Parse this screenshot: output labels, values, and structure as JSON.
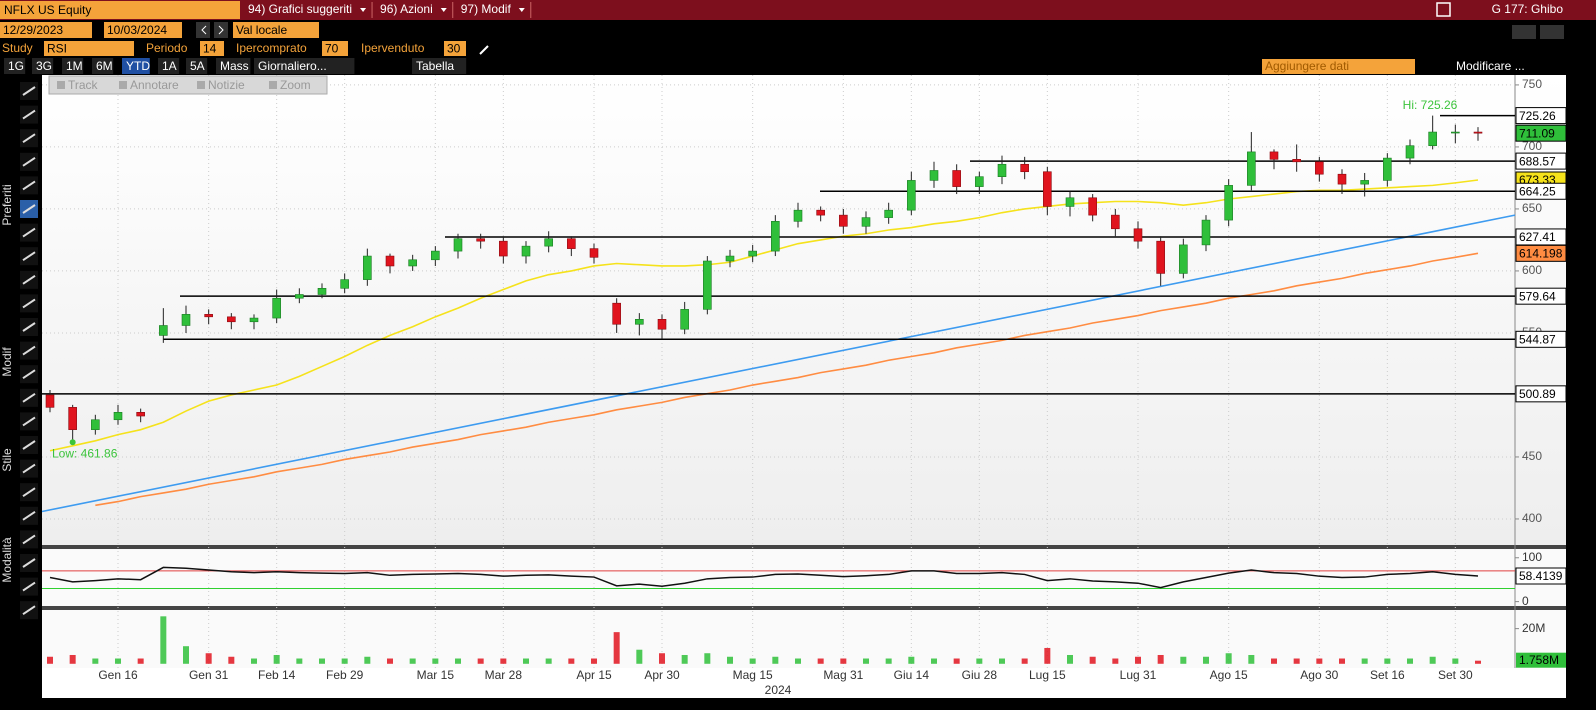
{
  "header": {
    "ticker": "NFLX US Equity",
    "menus": [
      "94) Grafici suggeriti",
      "96) Azioni",
      "97) Modif"
    ],
    "user": "G 177: Ghibo"
  },
  "controls": {
    "start_date": "12/29/2023",
    "end_date": "10/03/2024",
    "currency": "Val locale",
    "study_label": "Study",
    "study": "RSI",
    "period_label": "Periodo",
    "period": 14,
    "overbought_label": "Ipercomprato",
    "overbought": 70,
    "oversold_label": "Ipervenduto",
    "oversold": 30
  },
  "ranges": [
    "1G",
    "3G",
    "1M",
    "6M",
    "YTD",
    "1A",
    "5A",
    "Mass",
    "Giornaliero...",
    "Tabella"
  ],
  "add_data": "Aggiungere dati",
  "modify": "Modificare ...",
  "tools": [
    "Track",
    "Annotare",
    "Notizie",
    "Zoom"
  ],
  "sidebar": [
    "Preferiti",
    "Modif",
    "Stile",
    "Modalità"
  ],
  "chart_data": [
    {
      "type": "candlestick",
      "up_color": "#2fbf3a",
      "down_color": "#e0141e",
      "open": [
        500,
        490,
        472,
        480,
        486,
        548,
        556,
        565,
        563,
        559,
        562,
        578,
        581,
        586,
        593,
        612,
        604,
        609,
        616,
        626,
        624,
        612,
        620,
        626,
        618,
        574,
        557,
        561,
        553,
        569,
        608,
        612,
        616,
        640,
        649,
        645,
        636,
        643,
        649,
        673,
        681,
        668,
        676,
        686,
        680,
        652,
        659,
        645,
        634,
        624,
        598,
        621,
        641,
        669,
        696,
        690,
        688,
        678,
        670,
        673,
        691,
        701,
        712,
        712
      ],
      "high": [
        504,
        492,
        484,
        492,
        489,
        570,
        572,
        569,
        566,
        565,
        585,
        586,
        590,
        598,
        618,
        614,
        613,
        620,
        630,
        630,
        628,
        624,
        632,
        628,
        622,
        578,
        566,
        565,
        575,
        612,
        617,
        621,
        645,
        655,
        652,
        650,
        648,
        655,
        680,
        688,
        686,
        680,
        693,
        692,
        684,
        664,
        662,
        650,
        640,
        628,
        626,
        645,
        674,
        712,
        698,
        702,
        692,
        682,
        679,
        695,
        706,
        725.26,
        718,
        716
      ],
      "low": [
        486,
        461.86,
        468,
        476,
        478,
        542,
        550,
        557,
        553,
        553,
        558,
        574,
        578,
        582,
        588,
        598,
        600,
        604,
        610,
        618,
        606,
        606,
        615,
        612,
        606,
        550,
        548,
        545,
        549,
        565,
        603,
        607,
        612,
        635,
        640,
        630,
        630,
        638,
        645,
        667,
        662,
        662,
        670,
        674,
        645,
        644,
        640,
        628,
        618,
        588,
        594,
        616,
        636,
        665,
        682,
        680,
        672,
        662,
        660,
        668,
        686,
        698,
        703,
        705
      ],
      "close": [
        490,
        472,
        480,
        486,
        483,
        556,
        565,
        563,
        559,
        562,
        578,
        581,
        586,
        593,
        612,
        604,
        609,
        616,
        626,
        624,
        612,
        620,
        626,
        618,
        611,
        557,
        561,
        553,
        569,
        608,
        612,
        616,
        640,
        649,
        645,
        636,
        643,
        649,
        673,
        681,
        668,
        676,
        686,
        680,
        652,
        659,
        645,
        634,
        624,
        598,
        621,
        641,
        669,
        696,
        690,
        688,
        678,
        670,
        673,
        691,
        701,
        712,
        712,
        711.09
      ],
      "moving_averages": [
        {
          "color": "#f5e21b",
          "values": [
            455,
            459,
            463,
            468,
            472,
            478,
            487,
            495,
            500,
            504,
            508,
            515,
            523,
            531,
            540,
            548,
            555,
            563,
            570,
            578,
            585,
            592,
            597,
            600,
            604,
            606,
            605,
            604,
            604,
            605,
            607,
            612,
            617,
            622,
            625,
            628,
            630,
            633,
            635,
            638,
            640,
            643,
            647,
            650,
            652,
            654,
            655,
            656,
            656,
            655,
            653,
            655,
            658,
            660,
            662,
            664,
            665,
            665,
            666,
            667,
            668,
            669,
            671,
            673.33
          ]
        },
        {
          "color": "#ff8c42",
          "values": [
            null,
            null,
            411,
            414,
            418,
            421,
            424,
            428,
            431,
            434,
            438,
            441,
            444,
            448,
            451,
            454,
            458,
            461,
            464,
            468,
            471,
            474,
            478,
            481,
            484,
            488,
            491,
            494,
            498,
            501,
            504,
            508,
            511,
            514,
            518,
            521,
            524,
            528,
            531,
            534,
            538,
            541,
            544,
            548,
            551,
            554,
            558,
            561,
            564,
            568,
            571,
            574,
            578,
            581,
            584,
            588,
            591,
            594,
            598,
            601,
            604,
            608,
            611,
            614.198
          ]
        }
      ],
      "trend_line": {
        "color": "#3d9bf0",
        "start": 406,
        "end": 645
      },
      "levels": [
        725.26,
        688.57,
        664.25,
        627.41,
        579.64,
        544.87,
        500.89
      ],
      "hi_label": "Hi: 725.26",
      "low_label": "Low: 461.86",
      "ylim": [
        379,
        758
      ],
      "yticks": [
        400,
        450,
        550,
        600,
        650,
        700,
        750
      ],
      "grid": true
    },
    {
      "type": "line",
      "color": "#111111",
      "values": [
        55,
        45,
        48,
        52,
        50,
        78,
        76,
        72,
        68,
        66,
        68,
        66,
        65,
        64,
        66,
        60,
        62,
        63,
        64,
        62,
        58,
        60,
        61,
        58,
        56,
        36,
        40,
        35,
        42,
        52,
        55,
        56,
        62,
        63,
        60,
        57,
        59,
        62,
        70,
        70,
        64,
        64,
        66,
        62,
        48,
        52,
        47,
        45,
        42,
        32,
        45,
        55,
        65,
        72,
        66,
        64,
        58,
        55,
        56,
        62,
        64,
        68,
        62,
        58.4139
      ],
      "ylim": [
        -10,
        120
      ],
      "yticks": [
        0,
        100
      ]
    },
    {
      "type": "bar",
      "categories": [
        null,
        null,
        null,
        "Gen 16",
        null,
        null,
        null,
        "Gen 31",
        null,
        null,
        "Feb 14",
        null,
        null,
        "Feb 29",
        null,
        null,
        null,
        "Mar 15",
        null,
        null,
        "Mar 28",
        null,
        null,
        null,
        "Apr 15",
        null,
        null,
        "Apr 30",
        null,
        null,
        null,
        "Mag 15",
        null,
        null,
        null,
        "Mag 31",
        null,
        null,
        "Giu 14",
        null,
        null,
        "Giu 28",
        null,
        null,
        "Lug 15",
        null,
        null,
        null,
        "Lug 31",
        null,
        null,
        null,
        "Ago 15",
        null,
        null,
        null,
        "Ago 30",
        null,
        null,
        "Set 16",
        null,
        null,
        "Set 30",
        null
      ],
      "values": [
        4,
        5,
        3,
        3,
        3,
        27,
        10,
        6,
        4,
        3,
        5,
        3,
        3,
        3,
        4,
        3,
        3,
        3,
        3,
        3,
        3,
        3,
        3,
        3,
        3,
        18,
        8,
        6,
        5,
        6,
        4,
        3,
        4,
        3,
        3,
        3,
        3,
        3,
        4,
        3,
        3,
        3,
        3,
        3,
        9,
        5,
        4,
        3,
        4,
        5,
        4,
        4,
        6,
        5,
        3,
        3,
        3,
        3,
        3,
        3,
        3,
        4,
        3,
        1.758
      ],
      "last_value_label": "1.758M",
      "ylim": [
        -2.4,
        30.6
      ],
      "yticks": [
        {
          "value": 20,
          "label": "20M"
        }
      ],
      "x_label": "2024"
    }
  ]
}
